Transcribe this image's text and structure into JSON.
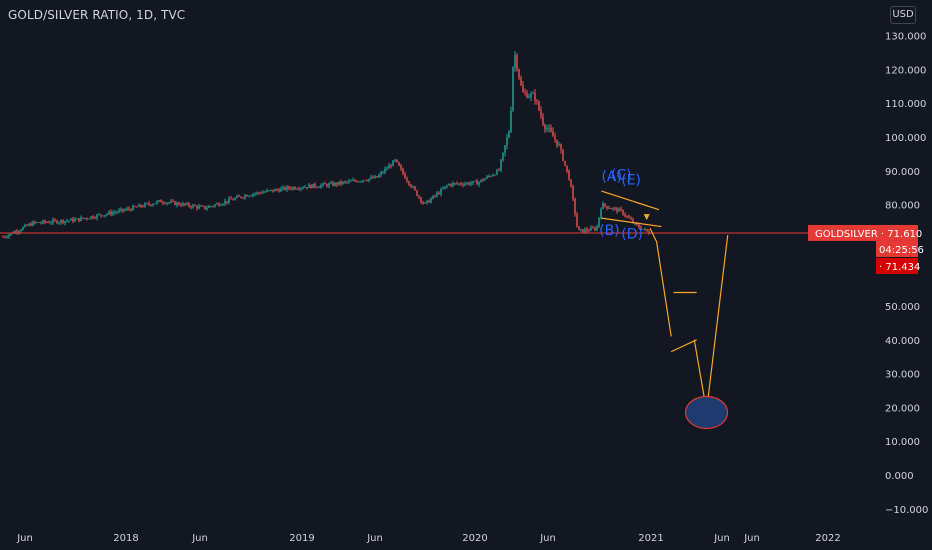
{
  "header": {
    "symbol_title": "GOLD/SILVER RATIO, 1D, TVC",
    "currency": "USD"
  },
  "colors": {
    "background": "#131722",
    "candle_up": "#26a69a",
    "candle_down": "#ef5350",
    "price_line": "#e53935",
    "drawing": "#f9a825",
    "wave_label": "#2962ff",
    "target_fill": "#1e3a6e",
    "target_stroke": "#e53935",
    "axis_text": "#d1d4dc"
  },
  "chart_data": {
    "type": "candlestick",
    "title": "GOLD/SILVER RATIO, 1D, TVC",
    "x_tick_labels": [
      "Jun",
      "2018",
      "Jun",
      "2019",
      "Jun",
      "2020",
      "Jun",
      "2021",
      "Jun",
      "Jun",
      "2022"
    ],
    "y_tick_labels": [
      "130.000",
      "120.000",
      "110.000",
      "100.000",
      "90.000",
      "80.000",
      "50.000",
      "40.000",
      "30.000",
      "20.000",
      "10.000",
      "0.000",
      "−10.000"
    ],
    "y_ticks": [
      130,
      120,
      110,
      100,
      90,
      80,
      50,
      40,
      30,
      20,
      10,
      0,
      -10
    ],
    "ylim": [
      -12,
      132
    ],
    "xlim": [
      "2017-04-01",
      "2022-05-01"
    ],
    "series": [
      {
        "name": "GOLD/SILVER RATIO",
        "anchors": [
          [
            "2017-04-01",
            70.5
          ],
          [
            "2017-06-01",
            74.5
          ],
          [
            "2017-09-01",
            75.5
          ],
          [
            "2017-12-01",
            78
          ],
          [
            "2018-03-01",
            81
          ],
          [
            "2018-06-01",
            79
          ],
          [
            "2018-09-01",
            83
          ],
          [
            "2018-12-01",
            85
          ],
          [
            "2019-03-01",
            86
          ],
          [
            "2019-06-01",
            88
          ],
          [
            "2019-07-10",
            93
          ],
          [
            "2019-08-01",
            88
          ],
          [
            "2019-09-10",
            80
          ],
          [
            "2019-11-01",
            86
          ],
          [
            "2020-01-01",
            86.5
          ],
          [
            "2020-02-15",
            90
          ],
          [
            "2020-03-10",
            103
          ],
          [
            "2020-03-18",
            126
          ],
          [
            "2020-04-05",
            113
          ],
          [
            "2020-05-01",
            112
          ],
          [
            "2020-05-20",
            104
          ],
          [
            "2020-06-20",
            98
          ],
          [
            "2020-07-15",
            87
          ],
          [
            "2020-08-01",
            72
          ],
          [
            "2020-08-20",
            72.5
          ],
          [
            "2020-09-10",
            73
          ],
          [
            "2020-09-20",
            80
          ],
          [
            "2020-10-10",
            79
          ],
          [
            "2020-11-01",
            78
          ],
          [
            "2020-12-01",
            74
          ],
          [
            "2021-01-01",
            71.5
          ]
        ]
      }
    ],
    "current_price": {
      "symbol": "GOLDSILVER",
      "value": 71.61,
      "label": "GOLDSILVER · 71.610",
      "countdown": "04:25:56",
      "secondary_label": "· 71.434",
      "secondary_value": 71.434
    },
    "wave_labels": [
      {
        "text": "(A)",
        "date": "2020-09-20",
        "value": 87
      },
      {
        "text": "(C)",
        "date": "2020-10-10",
        "value": 87.5
      },
      {
        "text": "(E)",
        "date": "2020-11-01",
        "value": 86
      },
      {
        "text": "(B)",
        "date": "2020-09-15",
        "value": 71
      },
      {
        "text": "(D)",
        "date": "2020-11-01",
        "value": 70
      }
    ],
    "drawings": {
      "triangle_upper": [
        [
          "2020-09-20",
          84
        ],
        [
          "2021-01-20",
          78.5
        ]
      ],
      "triangle_lower": [
        [
          "2020-09-20",
          76
        ],
        [
          "2021-01-25",
          73.5
        ]
      ],
      "projection_path": [
        [
          "2021-01-01",
          73
        ],
        [
          "2021-01-15",
          69
        ],
        [
          "2021-02-15",
          41
        ]
      ],
      "flat_segment": [
        [
          "2021-02-20",
          54
        ],
        [
          "2021-04-10",
          54
        ]
      ],
      "rising_segment": [
        [
          "2021-02-15",
          36.5
        ],
        [
          "2021-04-10",
          40
        ]
      ],
      "v_down": [
        [
          "2021-04-05",
          40
        ],
        [
          "2021-05-01",
          19
        ]
      ],
      "v_up": [
        [
          "2021-05-01",
          19
        ],
        [
          "2021-06-15",
          71
        ]
      ],
      "target_ellipse": {
        "date": "2021-05-01",
        "value": 18.5
      }
    },
    "grid": false,
    "legend": "none"
  }
}
